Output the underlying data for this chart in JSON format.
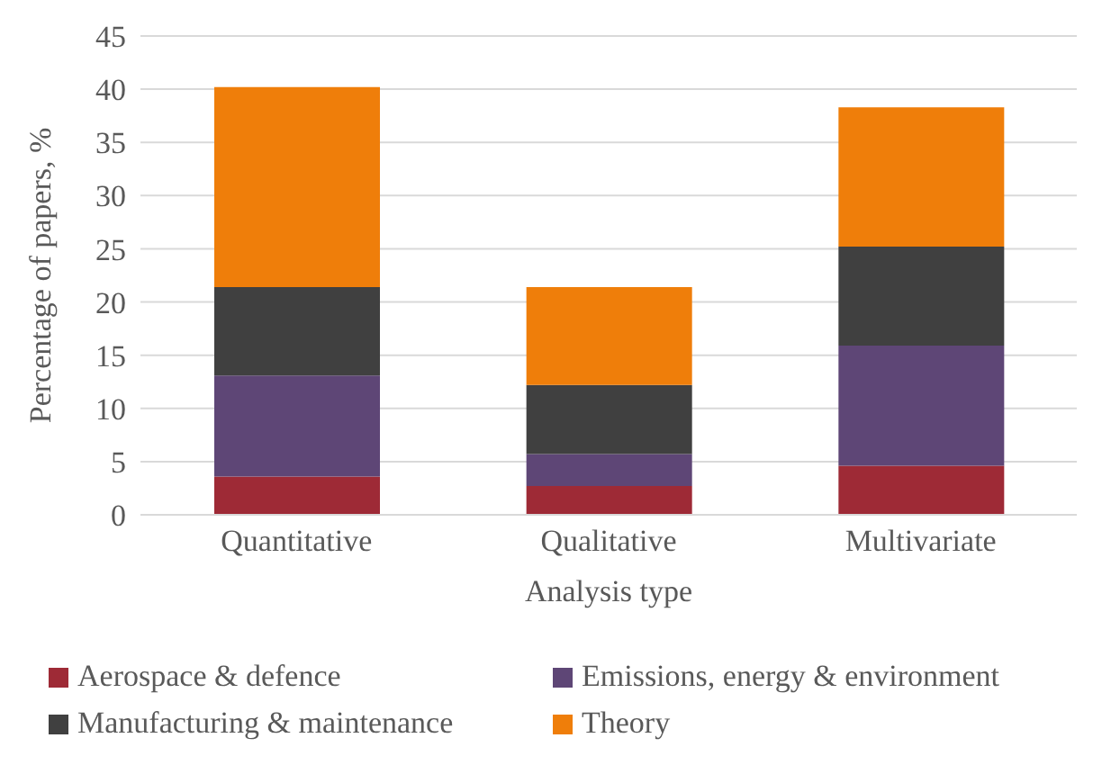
{
  "chart_data": {
    "type": "bar",
    "stacked": true,
    "xlabel": "Analysis type",
    "ylabel": "Percentage  of papers, %",
    "categories": [
      "Quantitative",
      "Qualitative",
      "Multivariate"
    ],
    "series": [
      {
        "name": "Aerospace & defence",
        "color": "#9e2a36",
        "values": [
          3.6,
          2.7,
          4.6
        ]
      },
      {
        "name": "Emissions, energy & environment",
        "color": "#5e4676",
        "values": [
          9.5,
          3.0,
          11.3
        ]
      },
      {
        "name": "Manufacturing & maintenance",
        "color": "#404040",
        "values": [
          8.3,
          6.5,
          9.3
        ]
      },
      {
        "name": "Theory",
        "color": "#ef7e0a",
        "values": [
          18.8,
          9.2,
          13.1
        ]
      }
    ],
    "ylim": [
      0,
      45
    ],
    "yticks": [
      0,
      5,
      10,
      15,
      20,
      25,
      30,
      35,
      40,
      45
    ],
    "grid": "y",
    "legend": "bottom"
  }
}
